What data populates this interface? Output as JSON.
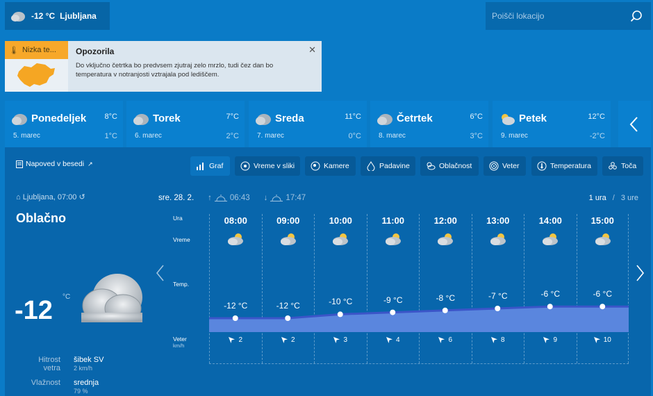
{
  "header": {
    "current_temp": "-12 °C",
    "current_city": "Ljubljana",
    "search_placeholder": "Poišči lokacijo"
  },
  "warning": {
    "badge": "Nizka te...",
    "title": "Opozorila",
    "text": "Do vključno četrtka bo predvsem zjutraj zelo mrzlo, tudi čez dan bo temperatura v notranjosti vztrajala pod lediščem.",
    "badge_color": "#f7a82a",
    "map_color": "#f5a623"
  },
  "days": [
    {
      "name": "Ponedeljek",
      "date": "5. marec",
      "max": "8°C",
      "min": "1°C"
    },
    {
      "name": "Torek",
      "date": "6. marec",
      "max": "7°C",
      "min": "2°C"
    },
    {
      "name": "Sreda",
      "date": "7. marec",
      "max": "11°C",
      "min": "0°C"
    },
    {
      "name": "Četrtek",
      "date": "8. marec",
      "max": "6°C",
      "min": "3°C"
    },
    {
      "name": "Petek",
      "date": "9. marec",
      "max": "12°C",
      "min": "-2°C"
    }
  ],
  "napoved": "Napoved v besedi",
  "tabs": [
    "Graf",
    "Vreme v sliki",
    "Kamere",
    "Padavine",
    "Oblačnost",
    "Veter",
    "Temperatura",
    "Toča"
  ],
  "current": {
    "location": "Ljubljana, 07:00",
    "condition": "Oblačno",
    "temp": "-12",
    "unit": "°C",
    "wind_label_1": "Hitrost",
    "wind_label_2": "vetra",
    "wind_value": "šibek SV",
    "wind_sub": "2 km/h",
    "humidity_label": "Vlažnost",
    "humidity_value": "srednja",
    "humidity_sub": "79 %"
  },
  "forecast_header": {
    "date": "sre. 28. 2.",
    "sunrise": "06:43",
    "sunset": "17:47",
    "range_active": "1 ura",
    "range_sep": "/",
    "range_other": "3 ure"
  },
  "row_labels": {
    "hour": "Ura",
    "weather": "Vreme",
    "temp": "Temp.",
    "wind": "Veter",
    "wind_unit": "km/h"
  },
  "hours": [
    {
      "time": "08:00",
      "temp": "-12 °C",
      "wind": "2"
    },
    {
      "time": "09:00",
      "temp": "-12 °C",
      "wind": "2"
    },
    {
      "time": "10:00",
      "temp": "-10 °C",
      "wind": "3"
    },
    {
      "time": "11:00",
      "temp": "-9 °C",
      "wind": "4"
    },
    {
      "time": "12:00",
      "temp": "-8 °C",
      "wind": "6"
    },
    {
      "time": "13:00",
      "temp": "-7 °C",
      "wind": "8"
    },
    {
      "time": "14:00",
      "temp": "-6 °C",
      "wind": "9"
    },
    {
      "time": "15:00",
      "temp": "-6 °C",
      "wind": "10"
    }
  ],
  "chart_data": {
    "type": "area",
    "categories": [
      "08:00",
      "09:00",
      "10:00",
      "11:00",
      "12:00",
      "13:00",
      "14:00",
      "15:00"
    ],
    "series": [
      {
        "values": [
          -12,
          -12,
          -10,
          -9,
          -8,
          -7,
          -6,
          -6
        ]
      }
    ]
  },
  "colors": {
    "background": "#0a7bc7",
    "panel": "#0866ac",
    "area_fill": "#5a86de",
    "area_line": "#3b55c8"
  }
}
